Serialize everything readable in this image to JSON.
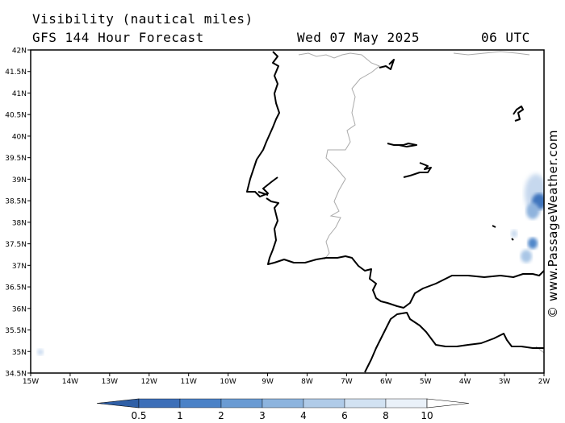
{
  "header": {
    "title": "Visibility (nautical miles)",
    "model": "GFS 144 Hour Forecast",
    "date": "Wed 07 May 2025",
    "time": "06 UTC"
  },
  "credit": "© www.PassageWeather.com",
  "map": {
    "lat_labels": [
      "42N",
      "41.5N",
      "41N",
      "40.5N",
      "40N",
      "39.5N",
      "39N",
      "38.5N",
      "38N",
      "37.5N",
      "37N",
      "36.5N",
      "36N",
      "35.5N",
      "35N",
      "34.5N"
    ],
    "lon_labels": [
      "15W",
      "14W",
      "13W",
      "12W",
      "11W",
      "10W",
      "9W",
      "8W",
      "7W",
      "6W",
      "5W",
      "4W",
      "3W",
      "2W"
    ],
    "colors": {
      "coast": "#000000",
      "border": "#aaaaaa",
      "frame": "#000000"
    }
  },
  "colorbar": {
    "labels": [
      "0.5",
      "1",
      "2",
      "3",
      "4",
      "6",
      "8",
      "10"
    ],
    "colors": [
      "#3d6fb8",
      "#4b82c7",
      "#6a9bd3",
      "#8db4de",
      "#b0cbe8",
      "#d2e2f2",
      "#eaf1f9",
      "#ffffff"
    ]
  }
}
